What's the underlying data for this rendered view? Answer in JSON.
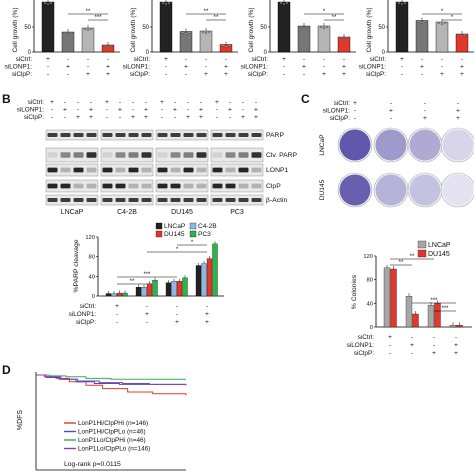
{
  "panel_labels": {
    "B": "B",
    "C": "C",
    "D": "D"
  },
  "treatment_labels": {
    "sictrl": "siCtrl:",
    "silonp1": "siLONP1:",
    "siclpp": "siClpP:"
  },
  "top_panels": {
    "ylabel": "Cell growth (%)",
    "signs": {
      "sictrl": [
        "+",
        "-",
        "-",
        "-"
      ],
      "silonp1": [
        "-",
        "+",
        "-",
        "+"
      ],
      "siclpp": [
        "-",
        "-",
        "+",
        "+"
      ]
    },
    "charts": [
      {
        "values": [
          100,
          40,
          48,
          14
        ],
        "sig": [
          {
            "from": 1,
            "to": 3,
            "label": "**"
          },
          {
            "from": 2,
            "to": 3,
            "label": "***"
          }
        ]
      },
      {
        "values": [
          100,
          41,
          42,
          15
        ],
        "sig": [
          {
            "from": 1,
            "to": 3,
            "label": "**"
          },
          {
            "from": 2,
            "to": 3,
            "label": "**"
          }
        ]
      },
      {
        "values": [
          100,
          52,
          52,
          30
        ],
        "sig": [
          {
            "from": 1,
            "to": 3,
            "label": "*"
          },
          {
            "from": 2,
            "to": 3,
            "label": "**"
          }
        ]
      },
      {
        "values": [
          100,
          63,
          60,
          36
        ],
        "sig": [
          {
            "from": 1,
            "to": 3,
            "label": "*"
          },
          {
            "from": 2,
            "to": 3,
            "label": "*"
          }
        ]
      }
    ],
    "colors": [
      "#222222",
      "#777777",
      "#b5b5b5",
      "#e0382b"
    ]
  },
  "western": {
    "row_labels": [
      "PARP",
      "Clv. PARP",
      "LONP1",
      "ClpP",
      "β-Actin"
    ],
    "cell_lines": [
      "LNCaP",
      "C4-2B",
      "DU145",
      "PC3"
    ],
    "signs": {
      "sictrl": [
        "+",
        "-",
        "-",
        "-",
        "+",
        "-",
        "-",
        "-",
        "+",
        "-",
        "-",
        "-",
        "+",
        "-",
        "-",
        "-"
      ],
      "silonp1": [
        "-",
        "+",
        "-",
        "+",
        "-",
        "+",
        "-",
        "+",
        "-",
        "+",
        "-",
        "+",
        "-",
        "+",
        "-",
        "+"
      ],
      "siclpp": [
        "-",
        "-",
        "+",
        "+",
        "-",
        "-",
        "+",
        "+",
        "-",
        "-",
        "+",
        "+",
        "-",
        "-",
        "+",
        "+"
      ]
    }
  },
  "parp_chart": {
    "ylabel": "%PARP cleavage",
    "yticks": [
      "0",
      "20",
      "40",
      "60",
      "80",
      "100",
      "120"
    ],
    "legend": [
      {
        "name": "LNCaP",
        "color": "#222222"
      },
      {
        "name": "C4-2B",
        "color": "#8fb7e3"
      },
      {
        "name": "DU145",
        "color": "#e0382b"
      },
      {
        "name": "PC3",
        "color": "#2db34a"
      }
    ],
    "signs": {
      "sictrl": [
        "+",
        "-",
        "-",
        "-"
      ],
      "silonp1": [
        "-",
        "+",
        "-",
        "+"
      ],
      "siclpp": [
        "-",
        "-",
        "+",
        "+"
      ]
    },
    "values": [
      [
        5,
        5,
        6,
        6
      ],
      [
        18,
        18,
        25,
        32
      ],
      [
        27,
        30,
        30,
        37
      ],
      [
        62,
        66,
        76,
        106
      ]
    ],
    "sig": [
      {
        "from": 0,
        "to": 1,
        "label": "**"
      },
      {
        "from": 0,
        "to": 2,
        "label": "***"
      },
      {
        "from": 1,
        "to": 3,
        "label": "*"
      },
      {
        "from": 2,
        "to": 3,
        "label": "*"
      }
    ]
  },
  "colony": {
    "row_labels": [
      "LNCaP",
      "DU145"
    ],
    "signs": {
      "sictrl": [
        "+",
        "-",
        "-",
        "-"
      ],
      "silonp1": [
        "-",
        "+",
        "-",
        "+"
      ],
      "siclpp": [
        "-",
        "-",
        "+",
        "+"
      ]
    },
    "density": [
      [
        0.95,
        0.55,
        0.45,
        0.18
      ],
      [
        0.9,
        0.4,
        0.3,
        0.1
      ]
    ]
  },
  "colony_chart": {
    "ylabel": "% Colonies",
    "yticks": [
      "0",
      "20",
      "40",
      "60",
      "80",
      "100",
      "120"
    ],
    "legend": [
      {
        "name": "LNCaP",
        "color": "#a7a7a7"
      },
      {
        "name": "DU145",
        "color": "#e0382b"
      }
    ],
    "signs": {
      "sictrl": [
        "+",
        "-",
        "-",
        "-"
      ],
      "silonp1": [
        "-",
        "+",
        "-",
        "+"
      ],
      "siclpp": [
        "-",
        "-",
        "+",
        "+"
      ]
    },
    "values": [
      [
        100,
        98
      ],
      [
        52,
        22
      ],
      [
        37,
        40
      ],
      [
        3,
        3
      ]
    ],
    "sig": [
      {
        "from": 0,
        "to": 1,
        "label": "**"
      },
      {
        "from": 0,
        "to": 2,
        "label": "**"
      },
      {
        "from": 1,
        "to": 3,
        "label": "***"
      },
      {
        "from": 2,
        "to": 3,
        "label": "***"
      }
    ]
  },
  "km": {
    "ylabel": "%DFS",
    "legend": [
      {
        "name": "LonP1Hi/ClpPHi (n=146)",
        "color": "#e0382b"
      },
      {
        "name": "LonP1Hi/ClpPLo (n=46)",
        "color": "#3d52c4"
      },
      {
        "name": "LonP1Lo/ClpPHi (n=46)",
        "color": "#2db34a"
      },
      {
        "name": "LonP1Lo/ClpPLo (n=146)",
        "color": "#8a3db5"
      }
    ],
    "logrank": "Log-rank p=0.0115",
    "chart_data": {
      "type": "line",
      "series": [
        {
          "name": "LonP1Hi/ClpPHi (n=146)",
          "x": [
            0,
            5,
            12,
            20,
            30,
            40,
            55,
            70,
            90
          ],
          "y": [
            100,
            98,
            96,
            92,
            88,
            84,
            80,
            78,
            76
          ]
        },
        {
          "name": "LonP1Hi/ClpPLo (n=46)",
          "x": [
            0,
            6,
            14,
            24,
            35,
            50,
            70,
            90
          ],
          "y": [
            100,
            97,
            95,
            92,
            90,
            89,
            89,
            89
          ]
        },
        {
          "name": "LonP1Lo/ClpPHi (n=46)",
          "x": [
            0,
            8,
            18,
            30,
            45,
            60,
            75,
            90
          ],
          "y": [
            100,
            99,
            98,
            96,
            95,
            95,
            95,
            95
          ]
        },
        {
          "name": "LonP1Lo/ClpPLo (n=146)",
          "x": [
            0,
            6,
            15,
            25,
            38,
            52,
            68,
            90
          ],
          "y": [
            100,
            98,
            95,
            93,
            91,
            90,
            89,
            88
          ]
        }
      ],
      "ylim": [
        0,
        100
      ]
    }
  }
}
